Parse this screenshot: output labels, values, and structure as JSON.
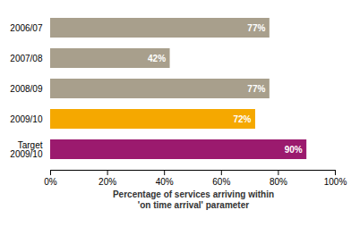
{
  "chart_data": {
    "type": "bar",
    "orientation": "horizontal",
    "categories": [
      "2006/07",
      "2007/08",
      "2008/09",
      "2009/10",
      "Target\n2009/10"
    ],
    "values": [
      77,
      42,
      77,
      72,
      90
    ],
    "value_labels": [
      "77%",
      "42%",
      "77%",
      "72%",
      "90%"
    ],
    "data_labels": true,
    "colors": [
      "#a89f8c",
      "#a89f8c",
      "#a89f8c",
      "#f5a800",
      "#9b1a6e"
    ],
    "xlabel": "Percentage of services arriving within\n'on time arrival' parameter",
    "xlim": [
      0,
      100
    ],
    "xticks": [
      {
        "value": 0,
        "label": "0%"
      },
      {
        "value": 20,
        "label": "20%"
      },
      {
        "value": 40,
        "label": "40%"
      },
      {
        "value": 60,
        "label": "60%"
      },
      {
        "value": 80,
        "label": "80%"
      },
      {
        "value": 100,
        "label": "100%"
      }
    ],
    "grid": false
  }
}
